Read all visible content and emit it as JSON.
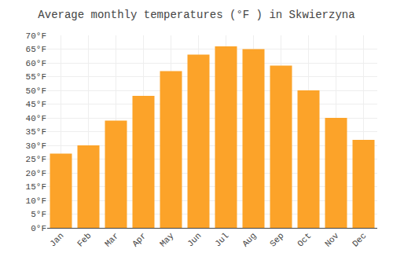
{
  "chart_data": {
    "type": "bar",
    "title": "Average monthly temperatures (°F ) in Skwierzyna",
    "categories": [
      "Jan",
      "Feb",
      "Mar",
      "Apr",
      "May",
      "Jun",
      "Jul",
      "Aug",
      "Sep",
      "Oct",
      "Nov",
      "Dec"
    ],
    "values": [
      27,
      30,
      39,
      48,
      57,
      63,
      66,
      65,
      59,
      50,
      40,
      32
    ],
    "color": "#FCA329",
    "ylim": [
      0,
      70
    ],
    "yticks": [
      {
        "value": 0,
        "label": "0°F"
      },
      {
        "value": 5,
        "label": "5°F"
      },
      {
        "value": 10,
        "label": "10°F"
      },
      {
        "value": 15,
        "label": "15°F"
      },
      {
        "value": 20,
        "label": "20°F"
      },
      {
        "value": 25,
        "label": "25°F"
      },
      {
        "value": 30,
        "label": "30°F"
      },
      {
        "value": 35,
        "label": "35°F"
      },
      {
        "value": 40,
        "label": "40°F"
      },
      {
        "value": 45,
        "label": "45°F"
      },
      {
        "value": 50,
        "label": "50°F"
      },
      {
        "value": 55,
        "label": "55°F"
      },
      {
        "value": 60,
        "label": "60°F"
      },
      {
        "value": 65,
        "label": "65°F"
      },
      {
        "value": 70,
        "label": "70°F"
      }
    ],
    "grid": true
  }
}
